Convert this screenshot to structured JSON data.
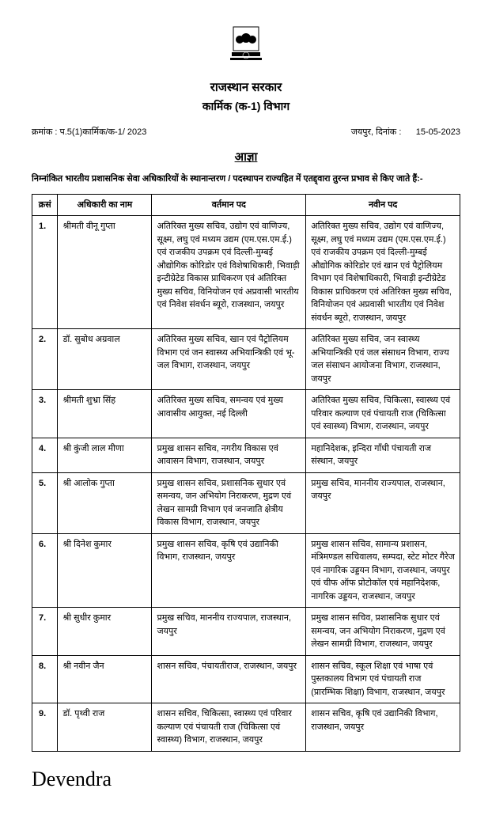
{
  "emblem_label": "State Emblem of India",
  "header": {
    "line1": "राजस्थान सरकार",
    "line2": "कार्मिक (क-1) विभाग"
  },
  "meta": {
    "left": "क्रमांक : प.5(1)कार्मिक/क-1/ 2023",
    "right_label": "जयपुर, दिनांक :",
    "right_value": "15-05-2023"
  },
  "order_title": "आज्ञा",
  "intro": "निम्नांकित भारतीय प्रशासनिक सेवा अधिकारियों के स्थानान्तरण / पदस्थापन राज्यहित में एतद्द्वारा तुरन्त प्रभाव से किए जाते हैं:-",
  "columns": {
    "sn": "क्रसं",
    "name": "अधिकारी का नाम",
    "current": "वर्तमान पद",
    "new": "नवीन पद"
  },
  "rows": [
    {
      "sn": "1.",
      "name": "श्रीमती वीनू गुप्ता",
      "current": "अतिरिक्त मुख्य सचिव, उद्योग एवं वाणिज्य, सूक्ष्म, लघु एवं मध्यम उद्यम (एम.एस.एम.ई.) एवं राजकीय उपक्रम एवं दिल्ली-मुम्बई औद्योगिक कोरिडोर एवं विशेषाधिकारी, भिवाड़ी इन्टीग्रेटेड विकास प्राधिकरण एवं अतिरिक्त मुख्य सचिव, विनियोजन एवं अप्रवासी भारतीय एवं निवेश संवर्धन ब्यूरो, राजस्थान, जयपुर",
      "new": "अतिरिक्त मुख्य सचिव, उद्योग एवं वाणिज्य, सूक्ष्म, लघु एवं मध्यम उद्यम (एम.एस.एम.ई.) एवं राजकीय उपक्रम एवं दिल्ली-मुम्बई औद्योगिक कोरिडोर एवं खान एवं पैट्रोलियम विभाग एवं विशेषाधिकारी, भिवाड़ी इन्टीग्रेटेड विकास प्राधिकरण एवं अतिरिक्त मुख्य सचिव, विनियोजन एवं अप्रवासी भारतीय एवं निवेश संवर्धन ब्यूरो, राजस्थान, जयपुर"
    },
    {
      "sn": "2.",
      "name": "डॉ. सुबोध अग्रवाल",
      "current": "अतिरिक्त मुख्य सचिव, खान एवं पैट्रोलियम विभाग एवं जन स्वास्थ्य अभियान्त्रिकी एवं भू-जल विभाग, राजस्थान, जयपुर",
      "new": "अतिरिक्त मुख्य सचिव, जन स्वास्थ्य अभियान्त्रिकी एवं जल संसाधन विभाग, राज्य जल संसाधन आयोजना विभाग, राजस्थान, जयपुर"
    },
    {
      "sn": "3.",
      "name": "श्रीमती शुभ्रा सिंह",
      "current": "अतिरिक्त मुख्य सचिव, समन्वय एवं मुख्य आवासीय आयुक्त, नई दिल्ली",
      "new": "अतिरिक्त मुख्य सचिव, चिकित्सा, स्वास्थ्य एवं परिवार कल्याण एवं पंचायती राज (चिकित्सा एवं स्वास्थ्य) विभाग, राजस्थान, जयपुर"
    },
    {
      "sn": "4.",
      "name": "श्री कुंजी लाल मीणा",
      "current": "प्रमुख शासन सचिव, नगरीय विकास एवं आवासन विभाग, राजस्थान, जयपुर",
      "new": "महानिदेशक, इन्दिरा गाँधी पंचायती राज संस्थान, जयपुर"
    },
    {
      "sn": "5.",
      "name": "श्री आलोक गुप्ता",
      "current": "प्रमुख शासन सचिव, प्रशासनिक सुधार एवं समन्वय, जन अभियोग निराकरण, मुद्रण एवं लेखन सामग्री विभाग एवं जनजाति क्षेत्रीय विकास विभाग, राजस्थान, जयपुर",
      "new": "प्रमुख सचिव, माननीय राज्यपाल, राजस्थान, जयपुर"
    },
    {
      "sn": "6.",
      "name": "श्री दिनेश कुमार",
      "current": "प्रमुख शासन सचिव, कृषि एवं उद्यानिकी विभाग, राजस्थान, जयपुर",
      "new": "प्रमुख शासन सचिव, सामान्य प्रशासन, मंत्रिमण्डल सचिवालय, सम्पदा, स्टेट मोटर गैरेज एवं नागरिक उड्डयन विभाग, राजस्थान, जयपुर एवं चीफ ऑफ प्रोटोकॉल एवं महानिदेशक, नागरिक उड्डयन, राजस्थान, जयपुर"
    },
    {
      "sn": "7.",
      "name": "श्री सुधीर कुमार",
      "current": "प्रमुख सचिव, माननीय राज्यपाल, राजस्थान, जयपुर",
      "new": "प्रमुख शासन सचिव, प्रशासनिक सुधार एवं समन्वय, जन अभियोग निराकरण, मुद्रण एवं लेखन सामग्री विभाग, राजस्थान, जयपुर"
    },
    {
      "sn": "8.",
      "name": "श्री नवीन जैन",
      "current": "शासन सचिव, पंचायतीराज, राजस्थान, जयपुर",
      "new": "शासन सचिव, स्कूल शिक्षा एवं भाषा एवं पुस्तकालय विभाग एवं पंचायती राज (प्रारम्भिक शिक्षा) विभाग, राजस्थान, जयपुर"
    },
    {
      "sn": "9.",
      "name": "डॉ. पृथ्वी राज",
      "current": "शासन सचिव, चिकित्सा, स्वास्थ्य एवं परिवार कल्याण एवं पंचायती राज (चिकित्सा एवं स्वास्थ्य) विभाग, राजस्थान, जयपुर",
      "new": "शासन सचिव, कृषि एवं उद्यानिकी विभाग, राजस्थान, जयपुर"
    }
  ],
  "signature": "Devendra"
}
